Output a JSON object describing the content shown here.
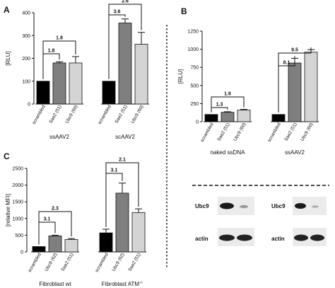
{
  "chart_data": [
    {
      "panel": "A",
      "type": "bar",
      "ylabel": "[RLU]",
      "ylim": [
        0,
        400
      ],
      "yticks": [
        0,
        100,
        200,
        300,
        400
      ],
      "groups": [
        {
          "name": "ssAAV2",
          "categories": [
            "scrambled",
            "Sae2 (51)",
            "Ubc9 (60)"
          ],
          "values": [
            100,
            180,
            180
          ],
          "errors": [
            0,
            5,
            28
          ],
          "colors": [
            "#000000",
            "#7f7f7f",
            "#d4d4d4"
          ]
        },
        {
          "name": "scAAV2",
          "categories": [
            "scrambled",
            "Sae2 (51)",
            "Ubc9 (60)"
          ],
          "values": [
            100,
            355,
            262
          ],
          "errors": [
            0,
            18,
            52
          ],
          "colors": [
            "#000000",
            "#7f7f7f",
            "#d4d4d4"
          ]
        }
      ],
      "annotations": [
        {
          "text": "1.8",
          "group": 0,
          "from": 0,
          "to": 1
        },
        {
          "text": "1.8",
          "group": 0,
          "from": 0,
          "to": 2
        },
        {
          "text": "3.6",
          "group": 1,
          "from": 0,
          "to": 1
        },
        {
          "text": "2.6",
          "group": 1,
          "from": 0,
          "to": 2
        }
      ]
    },
    {
      "panel": "B",
      "type": "bar",
      "ylabel": "[RLU]",
      "ylim": [
        0,
        1250
      ],
      "yticks": [
        0,
        250,
        500,
        750,
        1000,
        1250
      ],
      "groups": [
        {
          "name": "naked ssDNA",
          "categories": [
            "scrambled",
            "Sae2 (51)",
            "Ubc9 (60)"
          ],
          "values": [
            100,
            130,
            160
          ],
          "errors": [
            0,
            8,
            10
          ],
          "colors": [
            "#000000",
            "#7f7f7f",
            "#d4d4d4"
          ]
        },
        {
          "name": "ssAAV2",
          "categories": [
            "scrambled",
            "Sae2 (51)",
            "Ubc9 (60)"
          ],
          "values": [
            100,
            810,
            960
          ],
          "errors": [
            0,
            65,
            35
          ],
          "colors": [
            "#000000",
            "#7f7f7f",
            "#d4d4d4"
          ]
        }
      ],
      "annotations": [
        {
          "text": "1.3",
          "group": 0,
          "from": 0,
          "to": 1
        },
        {
          "text": "1.6",
          "group": 0,
          "from": 0,
          "to": 2
        },
        {
          "text": "8.1",
          "group": 1,
          "from": 0,
          "to": 1
        },
        {
          "text": "9.5",
          "group": 1,
          "from": 0,
          "to": 2
        }
      ]
    },
    {
      "panel": "C",
      "type": "bar",
      "ylabel": "[relative MFI]",
      "ylim": [
        0,
        2500
      ],
      "yticks": [
        0,
        500,
        1000,
        1500,
        2000,
        2500
      ],
      "groups": [
        {
          "name": "Fibroblast wt",
          "categories": [
            "scrambled",
            "Ubc9 (62)",
            "Sae2 (51)"
          ],
          "values": [
            160,
            480,
            370
          ],
          "errors": [
            0,
            20,
            30
          ],
          "colors": [
            "#000000",
            "#7f7f7f",
            "#d4d4d4"
          ]
        },
        {
          "name": "Fibroblast ATM",
          "name_superscript": "-/-",
          "categories": [
            "scrambled",
            "Ubc9 (62)",
            "Sae2 (51)"
          ],
          "values": [
            570,
            1760,
            1180
          ],
          "errors": [
            110,
            300,
            110
          ],
          "colors": [
            "#000000",
            "#7f7f7f",
            "#d4d4d4"
          ]
        }
      ],
      "annotations": [
        {
          "text": "3.1",
          "group": 0,
          "from": 0,
          "to": 1
        },
        {
          "text": "2.3",
          "group": 0,
          "from": 0,
          "to": 2
        },
        {
          "text": "3.1",
          "group": 1,
          "from": 0,
          "to": 1
        },
        {
          "text": "2.1",
          "group": 1,
          "from": 0,
          "to": 2
        }
      ]
    }
  ],
  "blots": [
    {
      "upper_label": "Ubc9",
      "lower_label": "actin"
    },
    {
      "upper_label": "Ubc9",
      "lower_label": "actin"
    }
  ]
}
